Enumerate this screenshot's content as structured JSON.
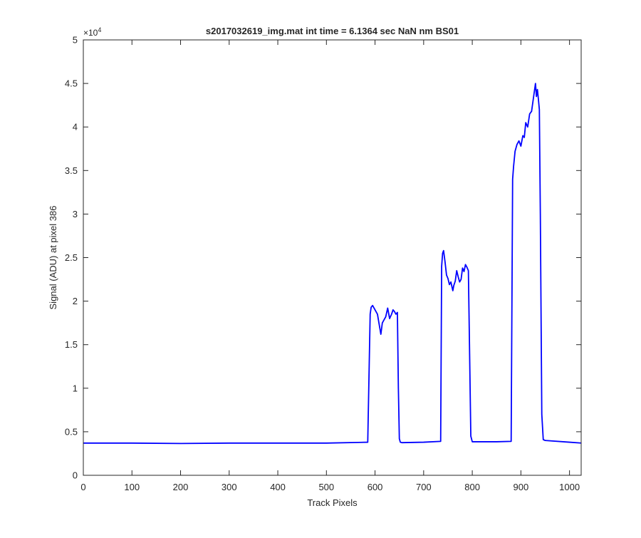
{
  "chart_data": {
    "type": "line",
    "title": "s2017032619_img.mat int time = 6.1364 sec  NaN nm BS01",
    "xlabel": "Track Pixels",
    "ylabel": "Signal (ADU) at pixel 386",
    "y_exponent_label": "×10",
    "y_exponent_power": "4",
    "xlim": [
      0,
      1024
    ],
    "ylim": [
      0,
      50000
    ],
    "x_ticks": [
      0,
      100,
      200,
      300,
      400,
      500,
      600,
      700,
      800,
      900,
      1000
    ],
    "x_tick_labels": [
      "0",
      "100",
      "200",
      "300",
      "400",
      "500",
      "600",
      "700",
      "800",
      "900",
      "1000"
    ],
    "y_ticks": [
      0,
      5000,
      10000,
      15000,
      20000,
      25000,
      30000,
      35000,
      40000,
      45000,
      50000
    ],
    "y_tick_labels": [
      "0",
      "0.5",
      "1",
      "1.5",
      "2",
      "2.5",
      "3",
      "3.5",
      "4",
      "4.5",
      "5"
    ],
    "grid": false,
    "series": [
      {
        "color": "#0000ff",
        "x": [
          0,
          100,
          200,
          300,
          400,
          500,
          585,
          590,
          592,
          595,
          600,
          605,
          608,
          612,
          615,
          618,
          622,
          626,
          630,
          634,
          637,
          640,
          643,
          646,
          648,
          650,
          652,
          655,
          700,
          735,
          737,
          739,
          741,
          744,
          747,
          750,
          753,
          756,
          760,
          762,
          765,
          768,
          771,
          774,
          777,
          780,
          783,
          786,
          789,
          792,
          794,
          797,
          800,
          850,
          880,
          883,
          885,
          888,
          892,
          896,
          900,
          904,
          907,
          910,
          914,
          918,
          922,
          925,
          928,
          930,
          932,
          934,
          936,
          938,
          940,
          943,
          946,
          950,
          1000,
          1024
        ],
        "y": [
          3700,
          3700,
          3650,
          3700,
          3700,
          3700,
          3800,
          18500,
          19300,
          19500,
          19000,
          18500,
          17500,
          16200,
          17500,
          17800,
          18200,
          19200,
          18000,
          18500,
          19000,
          18800,
          18500,
          18700,
          10000,
          4200,
          3800,
          3750,
          3800,
          3900,
          24000,
          25500,
          25800,
          24500,
          23000,
          22600,
          21900,
          22200,
          21200,
          21800,
          22300,
          23500,
          22800,
          22200,
          22500,
          23800,
          23400,
          24200,
          23900,
          23500,
          16000,
          4500,
          3850,
          3850,
          3900,
          34000,
          35500,
          37200,
          38000,
          38400,
          37800,
          39000,
          38800,
          40500,
          40000,
          41500,
          41800,
          43000,
          44200,
          45000,
          43500,
          44300,
          43200,
          42000,
          30000,
          7000,
          4100,
          4000,
          3800,
          3700
        ]
      }
    ]
  }
}
